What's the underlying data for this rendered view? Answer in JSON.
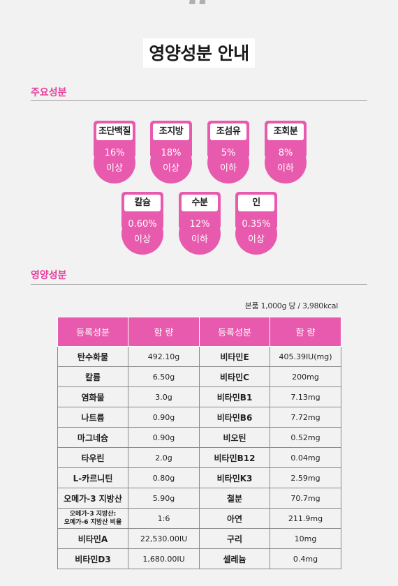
{
  "header": {
    "quote_mark": "“",
    "title": "영양성분 안내"
  },
  "main_ingredients": {
    "label": "주요성분",
    "badges": [
      {
        "name": "조단백질",
        "value": "16%",
        "condition": "이상"
      },
      {
        "name": "조지방",
        "value": "18%",
        "condition": "이상"
      },
      {
        "name": "조섬유",
        "value": "5%",
        "condition": "이하"
      },
      {
        "name": "조회분",
        "value": "8%",
        "condition": "이하"
      },
      {
        "name": "칼슘",
        "value": "0.60%",
        "condition": "이상"
      },
      {
        "name": "수분",
        "value": "12%",
        "condition": "이하"
      },
      {
        "name": "인",
        "value": "0.35%",
        "condition": "이상"
      }
    ]
  },
  "nutrition": {
    "label": "영양성분",
    "serving": "본품 1,000g 당 / 3,980kcal",
    "headers": [
      "등록성분",
      "함 량",
      "등록성분",
      "함 량"
    ],
    "rows": [
      [
        "탄수화물",
        "492.10g",
        "비타민E",
        "405.39IU(mg)"
      ],
      [
        "칼륨",
        "6.50g",
        "비타민C",
        "200mg"
      ],
      [
        "염화물",
        "3.0g",
        "비타민B1",
        "7.13mg"
      ],
      [
        "나트륨",
        "0.90g",
        "비타민B6",
        "7.72mg"
      ],
      [
        "마그네슘",
        "0.90g",
        "비오틴",
        "0.52mg"
      ],
      [
        "타우린",
        "2.0g",
        "비타민B12",
        "0.04mg"
      ],
      [
        "L-카르니틴",
        "0.80g",
        "비타민K3",
        "2.59mg"
      ],
      [
        "오메가-3 지방산",
        "5.90g",
        "철분",
        "70.7mg"
      ],
      [
        "오메가-3 지방산:\n오메가-6 지방산 비율",
        "1:6",
        "아연",
        "211.9mg"
      ],
      [
        "비타민A",
        "22,530.00IU",
        "구리",
        "10mg"
      ],
      [
        "비타민D3",
        "1,680.00IU",
        "셀레늄",
        "0.4mg"
      ]
    ]
  },
  "colors": {
    "accent": "#e85aad",
    "label": "#e6409c",
    "background": "#f2f2f2"
  }
}
